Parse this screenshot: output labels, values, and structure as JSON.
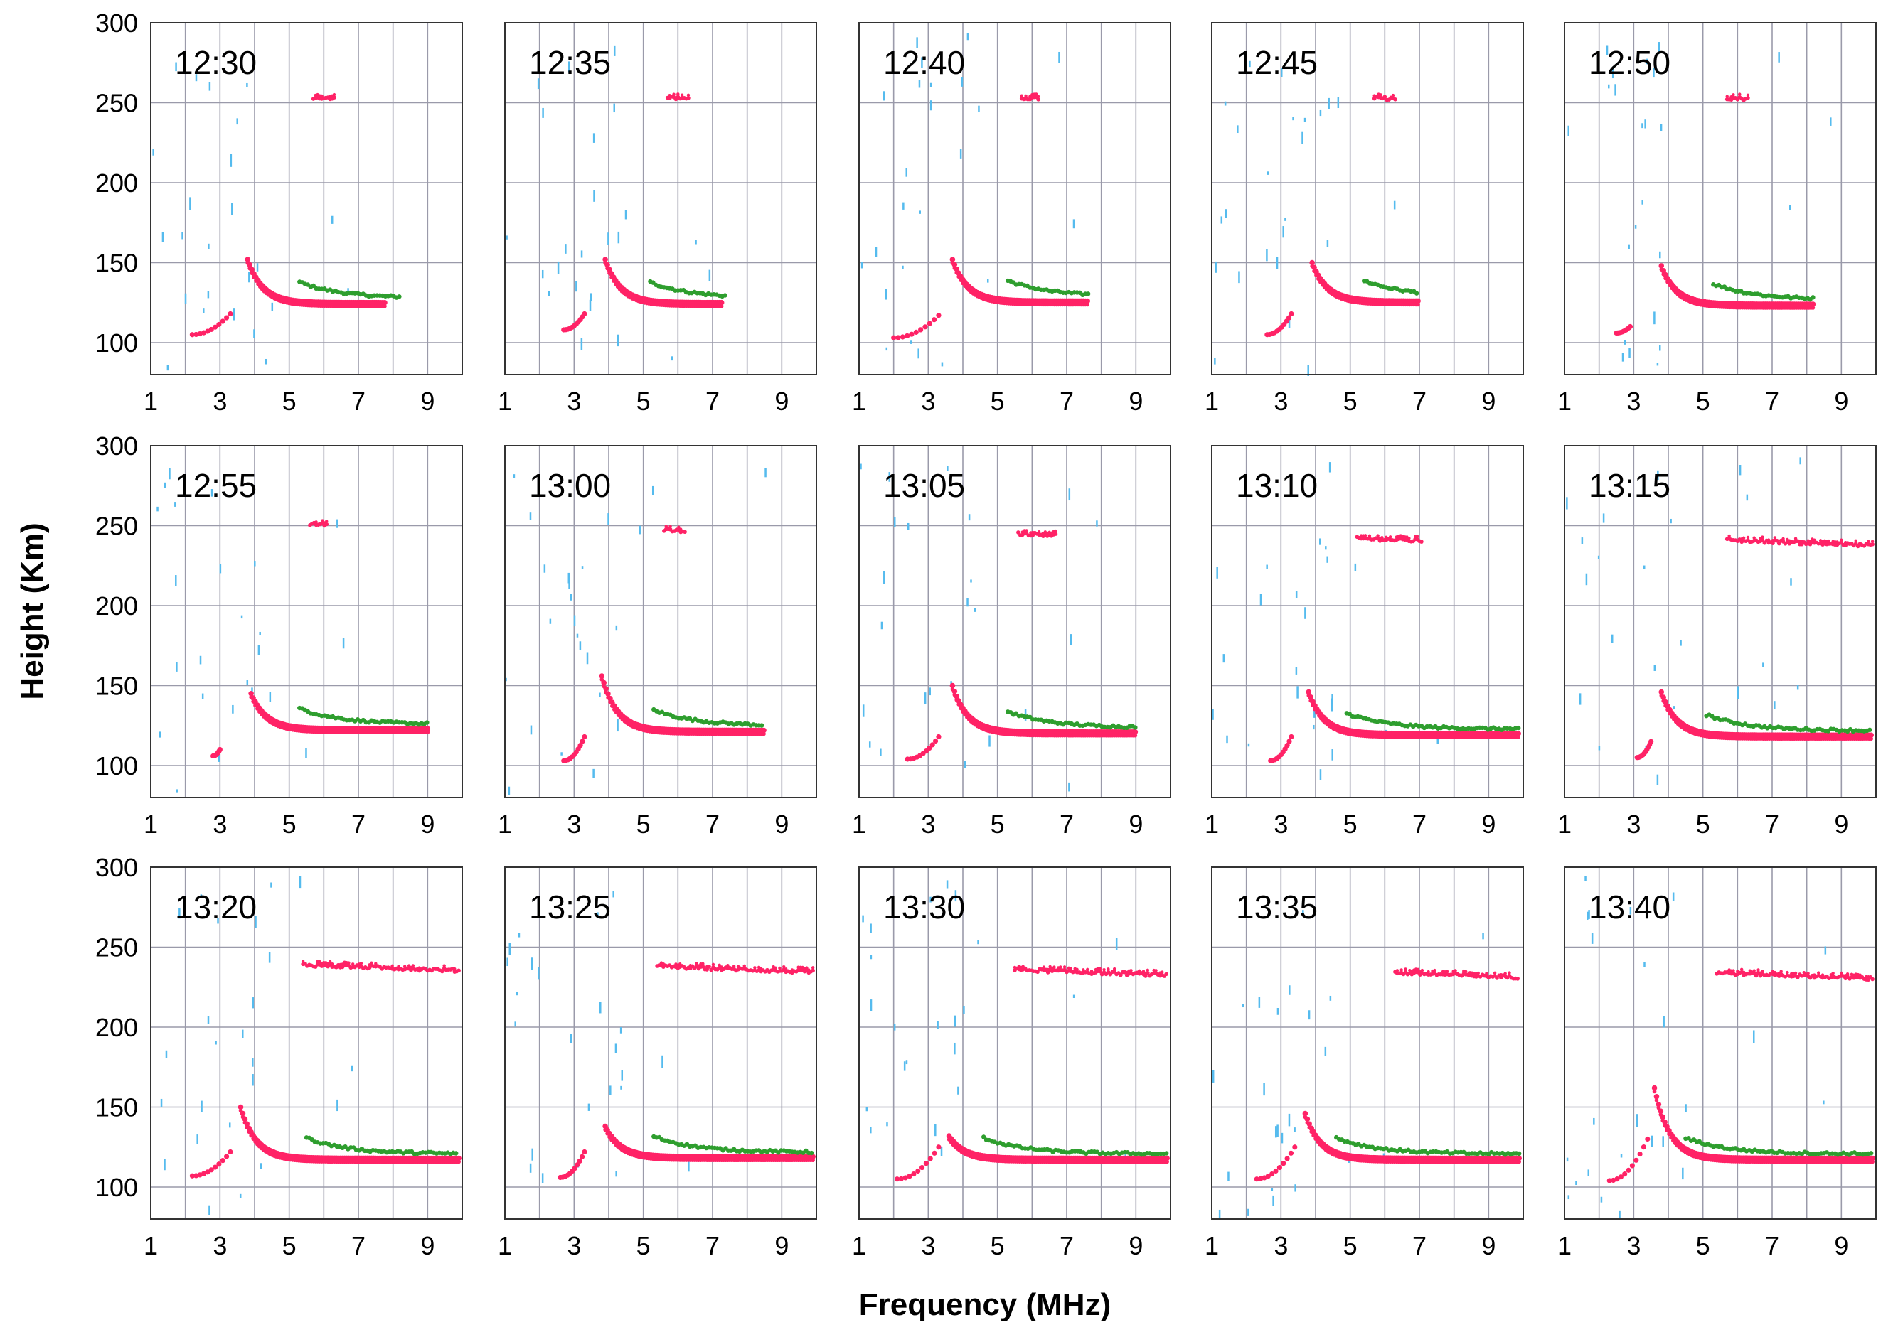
{
  "chart_data": {
    "type": "scatter",
    "title": "",
    "xlabel": "Frequency (MHz)",
    "ylabel": "Height (Km)",
    "xlim": [
      1,
      10
    ],
    "ylim": [
      80,
      300
    ],
    "xticks": [
      1,
      3,
      5,
      7,
      9
    ],
    "yticks": [
      100,
      150,
      200,
      250,
      300
    ],
    "colors": {
      "o_trace": "#ff2266",
      "x_trace": "#2e9e2e",
      "noise": "#55bbee",
      "grid": "#9a9aaa",
      "frame": "#333333"
    },
    "panels": [
      {
        "time": "12:30",
        "e_lower": [
          2.2,
          3.3,
          105,
          118
        ],
        "e_cusp": [
          3.8,
          152
        ],
        "e_end": 7.8,
        "e_floor": 125,
        "x_start": 5.3,
        "x_end": 8.2,
        "f_layer": [
          5.7,
          6.3,
          253
        ]
      },
      {
        "time": "12:35",
        "e_lower": [
          2.7,
          3.3,
          108,
          118
        ],
        "e_cusp": [
          3.9,
          152
        ],
        "e_end": 7.3,
        "e_floor": 125,
        "x_start": 5.2,
        "x_end": 7.4,
        "f_layer": [
          5.7,
          6.3,
          253
        ]
      },
      {
        "time": "12:40",
        "e_lower": [
          2.0,
          3.3,
          103,
          117
        ],
        "e_cusp": [
          3.7,
          152
        ],
        "e_end": 7.6,
        "e_floor": 126,
        "x_start": 5.3,
        "x_end": 7.7,
        "f_layer": [
          5.7,
          6.2,
          253
        ]
      },
      {
        "time": "12:45",
        "e_lower": [
          2.6,
          3.3,
          105,
          118
        ],
        "e_cusp": [
          3.9,
          150
        ],
        "e_end": 7.0,
        "e_floor": 126,
        "x_start": 5.4,
        "x_end": 7.0,
        "f_layer": [
          5.7,
          6.3,
          253
        ]
      },
      {
        "time": "12:50",
        "e_lower": [
          2.5,
          2.9,
          106,
          110
        ],
        "e_cusp": [
          3.8,
          148
        ],
        "e_end": 8.2,
        "e_floor": 124,
        "x_start": 5.3,
        "x_end": 8.2,
        "f_layer": [
          5.7,
          6.3,
          253
        ]
      },
      {
        "time": "12:55",
        "e_lower": [
          2.8,
          3.0,
          106,
          110
        ],
        "e_cusp": [
          3.9,
          145
        ],
        "e_end": 9.0,
        "e_floor": 123,
        "x_start": 5.3,
        "x_end": 9.0,
        "f_layer": [
          5.6,
          6.1,
          251
        ]
      },
      {
        "time": "13:00",
        "e_lower": [
          2.7,
          3.3,
          103,
          118
        ],
        "e_cusp": [
          3.8,
          156
        ],
        "e_end": 8.5,
        "e_floor": 122,
        "x_start": 5.3,
        "x_end": 8.5,
        "f_layer": [
          5.6,
          6.2,
          247
        ]
      },
      {
        "time": "13:05",
        "e_lower": [
          2.4,
          3.3,
          104,
          118
        ],
        "e_cusp": [
          3.7,
          150
        ],
        "e_end": 9.0,
        "e_floor": 121,
        "x_start": 5.3,
        "x_end": 9.0,
        "f_layer": [
          5.6,
          6.7,
          245
        ]
      },
      {
        "time": "13:10",
        "e_lower": [
          2.7,
          3.3,
          103,
          118
        ],
        "e_cusp": [
          3.8,
          146
        ],
        "e_end": 9.9,
        "e_floor": 120,
        "x_start": 4.9,
        "x_end": 9.9,
        "f_layer": [
          5.2,
          7.1,
          242
        ]
      },
      {
        "time": "13:15",
        "e_lower": [
          3.1,
          3.5,
          105,
          115
        ],
        "e_cusp": [
          3.8,
          146
        ],
        "e_end": 9.9,
        "e_floor": 119,
        "x_start": 5.1,
        "x_end": 9.9,
        "f_layer": [
          5.7,
          9.9,
          241
        ]
      },
      {
        "time": "13:20",
        "e_lower": [
          2.2,
          3.3,
          107,
          122
        ],
        "e_cusp": [
          3.6,
          150
        ],
        "e_end": 9.9,
        "e_floor": 118,
        "x_start": 5.5,
        "x_end": 9.9,
        "f_layer": [
          5.4,
          9.9,
          239
        ]
      },
      {
        "time": "13:25",
        "e_lower": [
          2.6,
          3.3,
          106,
          122
        ],
        "e_cusp": [
          3.9,
          138
        ],
        "e_end": 9.9,
        "e_floor": 119,
        "x_start": 5.3,
        "x_end": 9.9,
        "f_layer": [
          5.4,
          9.9,
          238
        ]
      },
      {
        "time": "13:30",
        "e_lower": [
          2.1,
          3.3,
          105,
          125
        ],
        "e_cusp": [
          3.6,
          132
        ],
        "e_end": 9.9,
        "e_floor": 118,
        "x_start": 4.6,
        "x_end": 9.9,
        "f_layer": [
          5.5,
          9.9,
          236
        ]
      },
      {
        "time": "13:35",
        "e_lower": [
          2.3,
          3.4,
          105,
          125
        ],
        "e_cusp": [
          3.7,
          146
        ],
        "e_end": 9.9,
        "e_floor": 118,
        "x_start": 4.6,
        "x_end": 9.9,
        "f_layer": [
          6.3,
          9.9,
          234
        ]
      },
      {
        "time": "13:40",
        "e_lower": [
          2.3,
          3.4,
          104,
          130
        ],
        "e_cusp": [
          3.6,
          162
        ],
        "e_end": 9.9,
        "e_floor": 118,
        "x_start": 4.5,
        "x_end": 9.9,
        "f_layer": [
          5.4,
          9.9,
          234
        ]
      }
    ]
  }
}
